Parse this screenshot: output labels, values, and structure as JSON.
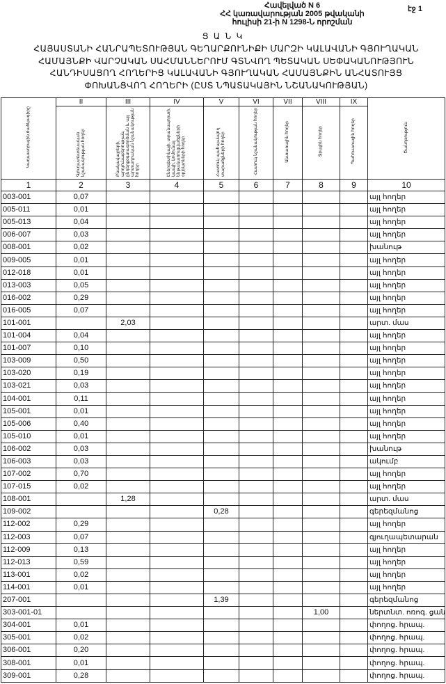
{
  "header": {
    "appendix": "Հավելված N 6",
    "decree_line1": "ՀՀ կառավարության 2005 թվականի",
    "decree_line2": "հուլիսի 21-ի N 1298-Ն որոշման",
    "page": "էջ 1"
  },
  "title_word": "Ց Ա Ն Կ",
  "title": "ՀԱՅԱՍՏԱՆԻ ՀԱՆՐԱՊԵՏՈՒԹՅԱՆ ԳԵՂԱՐՔՈՒՆԻՔԻ ՄԱՐԶԻ ԿԱԼԱՎԱՆԻ ԳՅՈՒՂԱԿԱՆ ՀԱՄԱՅՆՔԻ ՎԱՐՉԱԿԱՆ ՍԱՀՄԱՆՆԵՐՈՒՄ ԳՏՆՎՈՂ ՊԵՏԱԿԱՆ ՍԵՓԱԿԱՆՈՒԹՅՈՒՆ ՀԱՆԴԻՍԱՑՈՂ ՀՈՂԵՐԻՑ ԿԱԼԱՎԱՆԻ ԳՅՈՒՂԱԿԱՆ ՀԱՄԱՅՆՔԻՆ ԱՆՀԱՏՈՒՅՑ ՓՈԽԱՆՑՎՈՂ ՀՈՂԵՐԻ (ԸՍՏ ՆՊԱՏԱԿԱՅԻՆ ՆՇԱՆԱԿՈՒԹՅԱՆ)",
  "table": {
    "roman": [
      "II",
      "III",
      "IV",
      "V",
      "VI",
      "VII",
      "VIII",
      "IX"
    ],
    "headers": [
      "Կադաստրային ծածկագիրը",
      "Գյուղատնտեսական նշանակության հողեր",
      "Բնակավայրերի, արդյունաբերության, ընդերքօգտագործման և այլ արտադրական նշանակության հողեր",
      "Էներգետիկայի, տրանսպորտի, կապի, կոմունալ ենթակառուցվածքների օբյեկտների հողեր",
      "Հատուկ պահպանվող տարածքների հողեր",
      "Հատուկ նշանակության հողեր",
      "Անտառային հողեր",
      "Ջրային հողեր",
      "Պահուստային հողեր",
      "Ծանոթություն"
    ],
    "numbers": [
      "1",
      "2",
      "3",
      "4",
      "5",
      "6",
      "7",
      "8",
      "9",
      "10"
    ],
    "rows": [
      {
        "code": "003-001",
        "values": [
          "0,07",
          "",
          "",
          "",
          "",
          "",
          "",
          ""
        ],
        "note": "այլ հողեր"
      },
      {
        "code": "005-011",
        "values": [
          "0,01",
          "",
          "",
          "",
          "",
          "",
          "",
          ""
        ],
        "note": "այլ հողեր"
      },
      {
        "code": "005-013",
        "values": [
          "0,04",
          "",
          "",
          "",
          "",
          "",
          "",
          ""
        ],
        "note": "այլ հողեր"
      },
      {
        "code": "006-007",
        "values": [
          "0,03",
          "",
          "",
          "",
          "",
          "",
          "",
          ""
        ],
        "note": "այլ հողեր"
      },
      {
        "code": "008-001",
        "values": [
          "0,02",
          "",
          "",
          "",
          "",
          "",
          "",
          ""
        ],
        "note": "խանութ"
      },
      {
        "code": "009-005",
        "values": [
          "0,01",
          "",
          "",
          "",
          "",
          "",
          "",
          ""
        ],
        "note": "այլ հողեր"
      },
      {
        "code": "012-018",
        "values": [
          "0,01",
          "",
          "",
          "",
          "",
          "",
          "",
          ""
        ],
        "note": "այլ հողեր"
      },
      {
        "code": "013-003",
        "values": [
          "0,05",
          "",
          "",
          "",
          "",
          "",
          "",
          ""
        ],
        "note": "այլ հողեր"
      },
      {
        "code": "016-002",
        "values": [
          "0,29",
          "",
          "",
          "",
          "",
          "",
          "",
          ""
        ],
        "note": "այլ հողեր"
      },
      {
        "code": "016-005",
        "values": [
          "0,07",
          "",
          "",
          "",
          "",
          "",
          "",
          ""
        ],
        "note": "այլ հողեր"
      },
      {
        "code": "101-001",
        "values": [
          "",
          "2,03",
          "",
          "",
          "",
          "",
          "",
          ""
        ],
        "note": "արտ. մաս"
      },
      {
        "code": "101-004",
        "values": [
          "0,04",
          "",
          "",
          "",
          "",
          "",
          "",
          ""
        ],
        "note": "այլ հողեր"
      },
      {
        "code": "101-007",
        "values": [
          "0,10",
          "",
          "",
          "",
          "",
          "",
          "",
          ""
        ],
        "note": "այլ հողեր"
      },
      {
        "code": "103-009",
        "values": [
          "0,50",
          "",
          "",
          "",
          "",
          "",
          "",
          ""
        ],
        "note": "այլ հողեր"
      },
      {
        "code": "103-020",
        "values": [
          "0,19",
          "",
          "",
          "",
          "",
          "",
          "",
          ""
        ],
        "note": "այլ հողեր"
      },
      {
        "code": "103-021",
        "values": [
          "0,03",
          "",
          "",
          "",
          "",
          "",
          "",
          ""
        ],
        "note": "այլ հողեր"
      },
      {
        "code": "104-001",
        "values": [
          "0,11",
          "",
          "",
          "",
          "",
          "",
          "",
          ""
        ],
        "note": "այլ հողեր"
      },
      {
        "code": "105-001",
        "values": [
          "0,01",
          "",
          "",
          "",
          "",
          "",
          "",
          ""
        ],
        "note": "այլ հողեր"
      },
      {
        "code": "105-006",
        "values": [
          "0,40",
          "",
          "",
          "",
          "",
          "",
          "",
          ""
        ],
        "note": "այլ հողեր"
      },
      {
        "code": "105-010",
        "values": [
          "0,01",
          "",
          "",
          "",
          "",
          "",
          "",
          ""
        ],
        "note": "այլ հողեր"
      },
      {
        "code": "106-002",
        "values": [
          "0,03",
          "",
          "",
          "",
          "",
          "",
          "",
          ""
        ],
        "note": "խանութ"
      },
      {
        "code": "106-003",
        "values": [
          "0,03",
          "",
          "",
          "",
          "",
          "",
          "",
          ""
        ],
        "note": "ակումբ"
      },
      {
        "code": "107-002",
        "values": [
          "0,70",
          "",
          "",
          "",
          "",
          "",
          "",
          ""
        ],
        "note": "այլ հողեր"
      },
      {
        "code": "107-015",
        "values": [
          "0,02",
          "",
          "",
          "",
          "",
          "",
          "",
          ""
        ],
        "note": "այլ հողեր"
      },
      {
        "code": "108-001",
        "values": [
          "",
          "1,28",
          "",
          "",
          "",
          "",
          "",
          ""
        ],
        "note": "արտ. մաս"
      },
      {
        "code": "109-002",
        "values": [
          "",
          "",
          "",
          "0,28",
          "",
          "",
          "",
          ""
        ],
        "note": "գերեզմանոց"
      },
      {
        "code": "112-002",
        "values": [
          "0,29",
          "",
          "",
          "",
          "",
          "",
          "",
          ""
        ],
        "note": "այլ հողեր"
      },
      {
        "code": "112-003",
        "values": [
          "0,07",
          "",
          "",
          "",
          "",
          "",
          "",
          ""
        ],
        "note": "գյուղապետարան"
      },
      {
        "code": "112-009",
        "values": [
          "0,13",
          "",
          "",
          "",
          "",
          "",
          "",
          ""
        ],
        "note": "այլ հողեր"
      },
      {
        "code": "112-013",
        "values": [
          "0,59",
          "",
          "",
          "",
          "",
          "",
          "",
          ""
        ],
        "note": "այլ հողեր"
      },
      {
        "code": "113-001",
        "values": [
          "0,02",
          "",
          "",
          "",
          "",
          "",
          "",
          ""
        ],
        "note": "այլ հողեր"
      },
      {
        "code": "114-001",
        "values": [
          "0,01",
          "",
          "",
          "",
          "",
          "",
          "",
          ""
        ],
        "note": "այլ հողեր"
      },
      {
        "code": "207-001",
        "values": [
          "",
          "",
          "",
          "1,39",
          "",
          "",
          "",
          ""
        ],
        "note": "գերեզմանոց"
      },
      {
        "code": "303-001-01",
        "values": [
          "",
          "",
          "",
          "",
          "",
          "",
          "1,00",
          ""
        ],
        "note": "ներտնտ. ոռոգ. ցանց"
      },
      {
        "code": "304-001",
        "values": [
          "0,01",
          "",
          "",
          "",
          "",
          "",
          "",
          ""
        ],
        "note": "փողոց. հրապ."
      },
      {
        "code": "305-001",
        "values": [
          "0,02",
          "",
          "",
          "",
          "",
          "",
          "",
          ""
        ],
        "note": "փողոց. հրապ."
      },
      {
        "code": "306-001",
        "values": [
          "0,20",
          "",
          "",
          "",
          "",
          "",
          "",
          ""
        ],
        "note": "փողոց. հրապ."
      },
      {
        "code": "308-001",
        "values": [
          "0,01",
          "",
          "",
          "",
          "",
          "",
          "",
          ""
        ],
        "note": "փողոց. հրապ."
      },
      {
        "code": "309-001",
        "values": [
          "0,28",
          "",
          "",
          "",
          "",
          "",
          "",
          ""
        ],
        "note": "փողոց. հրապ."
      }
    ]
  }
}
